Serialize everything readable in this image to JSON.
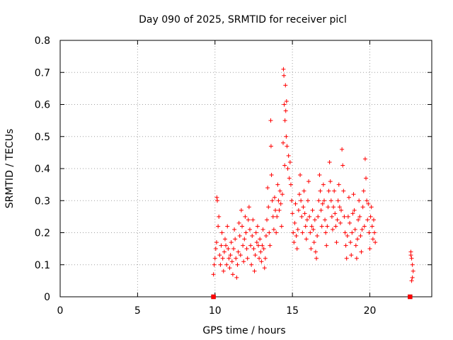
{
  "chart_data": {
    "type": "scatter",
    "title": "Day 090 of 2025, SRMTID for receiver picl",
    "xlabel": "GPS time / hours",
    "ylabel": "SRMTID / TECUs",
    "xlim": [
      0,
      24
    ],
    "ylim": [
      0,
      0.8
    ],
    "x_ticks": [
      0,
      5,
      10,
      15,
      20
    ],
    "x_tick_labels": [
      "0",
      "5",
      "10",
      "15",
      "20"
    ],
    "y_ticks": [
      0,
      0.1,
      0.2,
      0.3,
      0.4,
      0.5,
      0.6,
      0.7,
      0.8
    ],
    "y_tick_labels": [
      "0",
      "0.1",
      "0.2",
      "0.3",
      "0.4",
      "0.5",
      "0.6",
      "0.7",
      "0.8"
    ],
    "grid": true,
    "marker": "plus",
    "color": "#ff0000",
    "zero_value_markers": [
      {
        "x": 9.9,
        "y": 0
      },
      {
        "x": 22.6,
        "y": 0
      }
    ],
    "series": [
      {
        "name": "SRMTID",
        "points": [
          [
            9.9,
            0.07
          ],
          [
            9.95,
            0.1
          ],
          [
            10.0,
            0.12
          ],
          [
            10.05,
            0.15
          ],
          [
            10.1,
            0.17
          ],
          [
            10.12,
            0.31
          ],
          [
            10.15,
            0.3
          ],
          [
            10.2,
            0.22
          ],
          [
            10.25,
            0.25
          ],
          [
            10.3,
            0.13
          ],
          [
            10.35,
            0.1
          ],
          [
            10.4,
            0.16
          ],
          [
            10.45,
            0.2
          ],
          [
            10.5,
            0.12
          ],
          [
            10.55,
            0.08
          ],
          [
            10.6,
            0.14
          ],
          [
            10.65,
            0.18
          ],
          [
            10.7,
            0.16
          ],
          [
            10.75,
            0.1
          ],
          [
            10.8,
            0.22
          ],
          [
            10.85,
            0.15
          ],
          [
            10.9,
            0.12
          ],
          [
            10.95,
            0.09
          ],
          [
            11.0,
            0.13
          ],
          [
            11.05,
            0.17
          ],
          [
            11.1,
            0.11
          ],
          [
            11.15,
            0.07
          ],
          [
            11.2,
            0.15
          ],
          [
            11.25,
            0.21
          ],
          [
            11.3,
            0.18
          ],
          [
            11.35,
            0.12
          ],
          [
            11.4,
            0.06
          ],
          [
            11.45,
            0.1
          ],
          [
            11.5,
            0.14
          ],
          [
            11.55,
            0.23
          ],
          [
            11.6,
            0.19
          ],
          [
            11.65,
            0.13
          ],
          [
            11.7,
            0.27
          ],
          [
            11.75,
            0.22
          ],
          [
            11.8,
            0.16
          ],
          [
            11.85,
            0.11
          ],
          [
            11.9,
            0.18
          ],
          [
            11.95,
            0.25
          ],
          [
            12.0,
            0.2
          ],
          [
            12.05,
            0.15
          ],
          [
            12.1,
            0.12
          ],
          [
            12.15,
            0.24
          ],
          [
            12.2,
            0.28
          ],
          [
            12.25,
            0.21
          ],
          [
            12.3,
            0.16
          ],
          [
            12.35,
            0.1
          ],
          [
            12.4,
            0.19
          ],
          [
            12.45,
            0.24
          ],
          [
            12.5,
            0.15
          ],
          [
            12.55,
            0.08
          ],
          [
            12.6,
            0.13
          ],
          [
            12.65,
            0.2
          ],
          [
            12.7,
            0.17
          ],
          [
            12.75,
            0.22
          ],
          [
            12.8,
            0.16
          ],
          [
            12.85,
            0.12
          ],
          [
            12.9,
            0.18
          ],
          [
            12.95,
            0.14
          ],
          [
            13.0,
            0.11
          ],
          [
            13.05,
            0.16
          ],
          [
            13.1,
            0.21
          ],
          [
            13.15,
            0.15
          ],
          [
            13.2,
            0.09
          ],
          [
            13.25,
            0.12
          ],
          [
            13.3,
            0.19
          ],
          [
            13.35,
            0.24
          ],
          [
            13.4,
            0.34
          ],
          [
            13.45,
            0.28
          ],
          [
            13.5,
            0.2
          ],
          [
            13.55,
            0.16
          ],
          [
            13.6,
            0.55
          ],
          [
            13.62,
            0.47
          ],
          [
            13.65,
            0.38
          ],
          [
            13.7,
            0.3
          ],
          [
            13.75,
            0.25
          ],
          [
            13.8,
            0.21
          ],
          [
            13.85,
            0.31
          ],
          [
            13.9,
            0.27
          ],
          [
            13.95,
            0.2
          ],
          [
            14.0,
            0.25
          ],
          [
            14.05,
            0.35
          ],
          [
            14.1,
            0.3
          ],
          [
            14.15,
            0.27
          ],
          [
            14.2,
            0.33
          ],
          [
            14.25,
            0.29
          ],
          [
            14.3,
            0.22
          ],
          [
            14.35,
            0.32
          ],
          [
            14.4,
            0.48
          ],
          [
            14.42,
            0.71
          ],
          [
            14.45,
            0.69
          ],
          [
            14.47,
            0.6
          ],
          [
            14.5,
            0.41
          ],
          [
            14.52,
            0.55
          ],
          [
            14.55,
            0.66
          ],
          [
            14.57,
            0.58
          ],
          [
            14.6,
            0.5
          ],
          [
            14.62,
            0.61
          ],
          [
            14.65,
            0.47
          ],
          [
            14.7,
            0.4
          ],
          [
            14.75,
            0.44
          ],
          [
            14.8,
            0.37
          ],
          [
            14.85,
            0.42
          ],
          [
            14.9,
            0.35
          ],
          [
            14.95,
            0.3
          ],
          [
            15.0,
            0.26
          ],
          [
            15.05,
            0.2
          ],
          [
            15.1,
            0.17
          ],
          [
            15.15,
            0.23
          ],
          [
            15.2,
            0.29
          ],
          [
            15.25,
            0.19
          ],
          [
            15.3,
            0.15
          ],
          [
            15.35,
            0.21
          ],
          [
            15.4,
            0.27
          ],
          [
            15.45,
            0.32
          ],
          [
            15.5,
            0.38
          ],
          [
            15.55,
            0.3
          ],
          [
            15.6,
            0.25
          ],
          [
            15.65,
            0.2
          ],
          [
            15.7,
            0.28
          ],
          [
            15.75,
            0.33
          ],
          [
            15.8,
            0.26
          ],
          [
            15.85,
            0.22
          ],
          [
            15.9,
            0.18
          ],
          [
            15.95,
            0.24
          ],
          [
            16.0,
            0.3
          ],
          [
            16.05,
            0.36
          ],
          [
            16.1,
            0.25
          ],
          [
            16.15,
            0.2
          ],
          [
            16.2,
            0.15
          ],
          [
            16.25,
            0.22
          ],
          [
            16.3,
            0.27
          ],
          [
            16.35,
            0.21
          ],
          [
            16.4,
            0.17
          ],
          [
            16.45,
            0.24
          ],
          [
            16.5,
            0.14
          ],
          [
            16.55,
            0.12
          ],
          [
            16.6,
            0.19
          ],
          [
            16.65,
            0.25
          ],
          [
            16.7,
            0.3
          ],
          [
            16.75,
            0.38
          ],
          [
            16.8,
            0.33
          ],
          [
            16.85,
            0.27
          ],
          [
            16.9,
            0.22
          ],
          [
            16.95,
            0.29
          ],
          [
            17.0,
            0.35
          ],
          [
            17.05,
            0.3
          ],
          [
            17.1,
            0.24
          ],
          [
            17.15,
            0.2
          ],
          [
            17.2,
            0.16
          ],
          [
            17.25,
            0.22
          ],
          [
            17.3,
            0.28
          ],
          [
            17.35,
            0.33
          ],
          [
            17.4,
            0.42
          ],
          [
            17.45,
            0.36
          ],
          [
            17.5,
            0.3
          ],
          [
            17.55,
            0.25
          ],
          [
            17.6,
            0.21
          ],
          [
            17.65,
            0.28
          ],
          [
            17.7,
            0.33
          ],
          [
            17.75,
            0.26
          ],
          [
            17.8,
            0.22
          ],
          [
            17.85,
            0.17
          ],
          [
            17.9,
            0.24
          ],
          [
            17.95,
            0.3
          ],
          [
            18.0,
            0.35
          ],
          [
            18.05,
            0.28
          ],
          [
            18.1,
            0.23
          ],
          [
            18.15,
            0.27
          ],
          [
            18.2,
            0.46
          ],
          [
            18.25,
            0.41
          ],
          [
            18.3,
            0.33
          ],
          [
            18.35,
            0.25
          ],
          [
            18.4,
            0.2
          ],
          [
            18.45,
            0.16
          ],
          [
            18.5,
            0.12
          ],
          [
            18.55,
            0.19
          ],
          [
            18.6,
            0.25
          ],
          [
            18.65,
            0.31
          ],
          [
            18.7,
            0.23
          ],
          [
            18.75,
            0.17
          ],
          [
            18.8,
            0.13
          ],
          [
            18.85,
            0.2
          ],
          [
            18.9,
            0.26
          ],
          [
            18.95,
            0.32
          ],
          [
            19.0,
            0.27
          ],
          [
            19.05,
            0.21
          ],
          [
            19.1,
            0.16
          ],
          [
            19.15,
            0.12
          ],
          [
            19.2,
            0.18
          ],
          [
            19.25,
            0.24
          ],
          [
            19.3,
            0.3
          ],
          [
            19.35,
            0.25
          ],
          [
            19.4,
            0.19
          ],
          [
            19.45,
            0.14
          ],
          [
            19.5,
            0.21
          ],
          [
            19.55,
            0.28
          ],
          [
            19.6,
            0.33
          ],
          [
            19.65,
            0.22
          ],
          [
            19.7,
            0.43
          ],
          [
            19.75,
            0.37
          ],
          [
            19.8,
            0.3
          ],
          [
            19.85,
            0.24
          ],
          [
            19.9,
            0.29
          ],
          [
            19.95,
            0.2
          ],
          [
            20.0,
            0.15
          ],
          [
            20.05,
            0.25
          ],
          [
            20.1,
            0.28
          ],
          [
            20.15,
            0.22
          ],
          [
            20.2,
            0.18
          ],
          [
            20.25,
            0.24
          ],
          [
            20.3,
            0.2
          ],
          [
            20.35,
            0.17
          ],
          [
            22.65,
            0.14
          ],
          [
            22.7,
            0.12
          ],
          [
            22.75,
            0.1
          ],
          [
            22.8,
            0.08
          ],
          [
            22.75,
            0.06
          ],
          [
            22.7,
            0.05
          ],
          [
            22.65,
            0.13
          ]
        ]
      }
    ]
  }
}
